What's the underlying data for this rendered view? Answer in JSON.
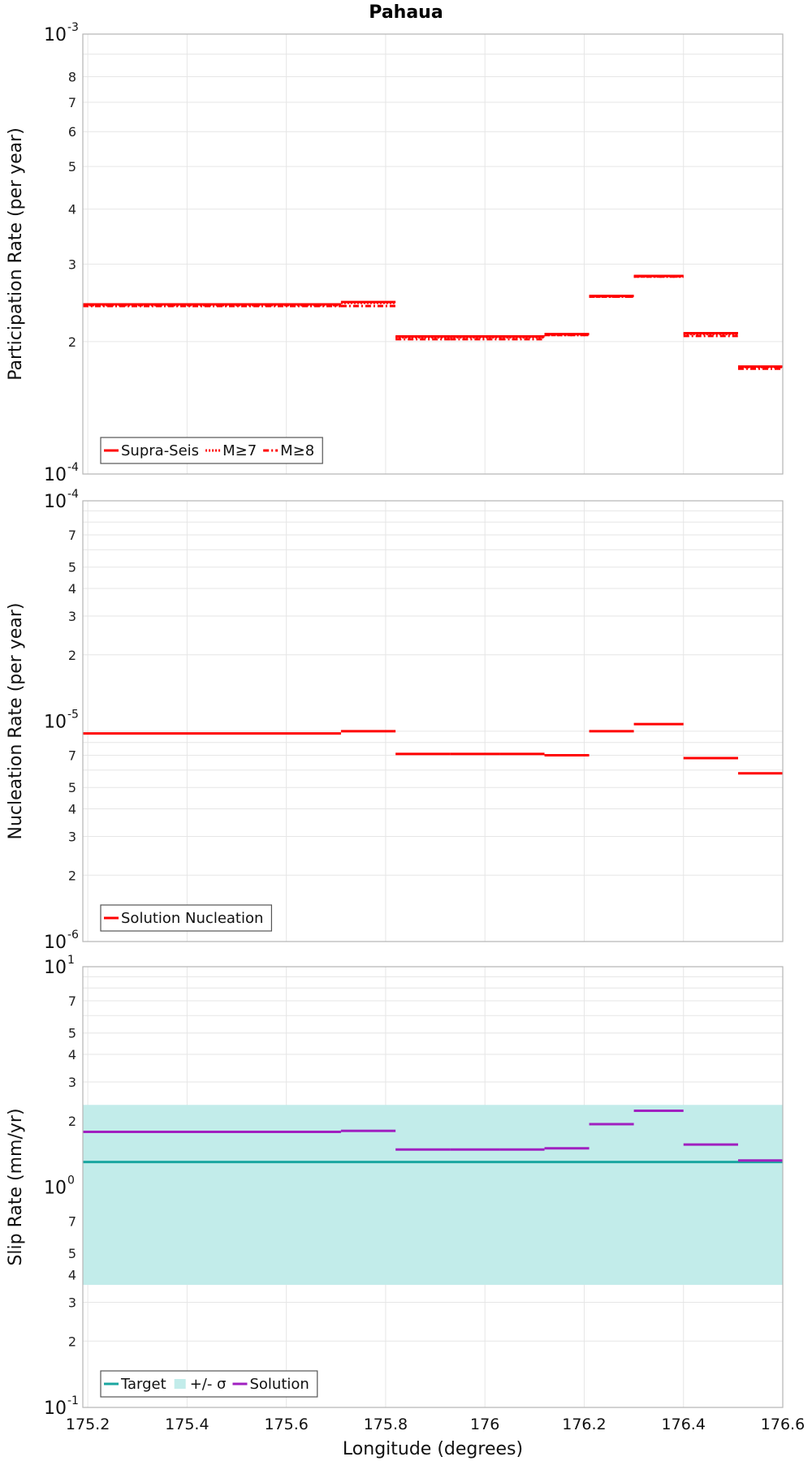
{
  "chart_data": [
    {
      "type": "line",
      "title": "Pahaua",
      "xlabel": "",
      "ylabel": "Participation Rate (per year)",
      "yscale": "log",
      "ylim": [
        0.0001,
        0.001
      ],
      "xlim": [
        175.19,
        176.6
      ],
      "grid": true,
      "legend_position": "bottom-left",
      "series": [
        {
          "name": "Supra-Seis",
          "color": "#ff0000",
          "style": "solid",
          "segments": [
            [
              175.19,
              175.71,
              0.000243
            ],
            [
              175.71,
              175.82,
              0.000246
            ],
            [
              175.82,
              175.93,
              0.0002055
            ],
            [
              175.93,
              176.03,
              0.0002055
            ],
            [
              176.03,
              176.12,
              0.0002055
            ],
            [
              176.12,
              176.21,
              0.000208
            ],
            [
              176.21,
              176.3,
              0.000254
            ],
            [
              176.3,
              176.4,
              0.000282
            ],
            [
              176.4,
              176.51,
              0.000209
            ],
            [
              176.51,
              176.6,
              0.0001755
            ]
          ]
        },
        {
          "name": "M≥7",
          "color": "#ff0000",
          "style": "dotted",
          "segments": [
            [
              175.19,
              175.71,
              0.000242
            ],
            [
              175.71,
              175.82,
              0.000245
            ],
            [
              175.82,
              175.93,
              0.0002045
            ],
            [
              175.93,
              176.03,
              0.0002045
            ],
            [
              176.03,
              176.12,
              0.0002045
            ],
            [
              176.12,
              176.21,
              0.000207
            ],
            [
              176.21,
              176.3,
              0.000253
            ],
            [
              176.3,
              176.4,
              0.000281
            ],
            [
              176.4,
              176.51,
              0.000208
            ],
            [
              176.51,
              176.6,
              0.000175
            ]
          ]
        },
        {
          "name": "M≥8",
          "color": "#ff0000",
          "style": "dashdot",
          "segments": [
            [
              175.19,
              175.71,
              0.000241
            ],
            [
              175.71,
              175.82,
              0.000241
            ],
            [
              175.82,
              175.93,
              0.0002025
            ],
            [
              175.93,
              176.03,
              0.0002025
            ],
            [
              176.03,
              176.12,
              0.0002025
            ],
            [
              176.12,
              176.21,
              0.000207
            ],
            [
              176.21,
              176.3,
              0.000253
            ],
            [
              176.3,
              176.4,
              0.000281
            ],
            [
              176.4,
              176.51,
              0.000206
            ],
            [
              176.51,
              176.6,
              0.0001735
            ]
          ]
        }
      ]
    },
    {
      "type": "line",
      "title": "",
      "xlabel": "",
      "ylabel": "Nucleation Rate (per year)",
      "yscale": "log",
      "ylim": [
        1e-06,
        0.0001
      ],
      "xlim": [
        175.19,
        176.6
      ],
      "grid": true,
      "legend_position": "bottom-left",
      "series": [
        {
          "name": "Solution Nucleation",
          "color": "#ff0000",
          "style": "solid",
          "segments": [
            [
              175.19,
              175.71,
              8.8e-06
            ],
            [
              175.71,
              175.82,
              9e-06
            ],
            [
              175.82,
              175.93,
              7.1e-06
            ],
            [
              175.93,
              176.03,
              7.1e-06
            ],
            [
              176.03,
              176.12,
              7.1e-06
            ],
            [
              176.12,
              176.21,
              7e-06
            ],
            [
              176.21,
              176.3,
              9e-06
            ],
            [
              176.3,
              176.4,
              9.7e-06
            ],
            [
              176.4,
              176.51,
              6.8e-06
            ],
            [
              176.51,
              176.6,
              5.8e-06
            ]
          ]
        }
      ]
    },
    {
      "type": "line",
      "title": "",
      "xlabel": "Longitude (degrees)",
      "ylabel": "Slip Rate (mm/yr)",
      "yscale": "log",
      "ylim": [
        0.1,
        10
      ],
      "xlim": [
        175.19,
        176.6
      ],
      "xticks": [
        "175.2",
        "175.4",
        "175.6",
        "175.8",
        "176",
        "176.2",
        "176.4",
        "176.6"
      ],
      "grid": true,
      "legend_position": "bottom-left",
      "band": {
        "name": "+/- σ",
        "color": "#c2ecea",
        "y0": 0.36,
        "y1": 2.36
      },
      "series": [
        {
          "name": "Target",
          "color": "#1aa6a0",
          "style": "solid",
          "segments": [
            [
              175.19,
              176.6,
              1.3
            ]
          ]
        },
        {
          "name": "Solution",
          "color": "#a020c0",
          "style": "solid",
          "segments": [
            [
              175.19,
              175.71,
              1.78
            ],
            [
              175.71,
              175.82,
              1.8
            ],
            [
              175.82,
              175.93,
              1.48
            ],
            [
              175.93,
              176.03,
              1.48
            ],
            [
              176.03,
              176.12,
              1.48
            ],
            [
              176.12,
              176.21,
              1.5
            ],
            [
              176.21,
              176.3,
              1.93
            ],
            [
              176.3,
              176.4,
              2.22
            ],
            [
              176.4,
              176.51,
              1.56
            ],
            [
              176.51,
              176.6,
              1.32
            ]
          ]
        }
      ]
    }
  ]
}
